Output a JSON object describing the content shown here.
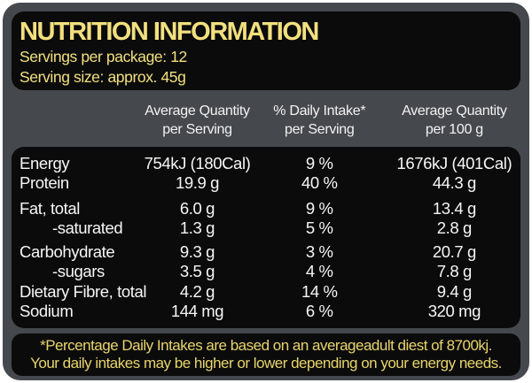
{
  "colors": {
    "page_background": "#FFFFFF",
    "frame_gray": "#45484D",
    "panel_black": "#0B0B0C",
    "header_yellow": "#F2E07E",
    "footnote_yellow": "#E8D56C",
    "table_white": "#F6F6F6"
  },
  "header": {
    "title": "NUTRITION INFORMATION",
    "servings_per_package": "Servings per package: 12",
    "serving_size": "Serving size: approx. 45g"
  },
  "table": {
    "column_headers": [
      {
        "line1": "Average Quantity",
        "line2": "per Serving"
      },
      {
        "line1": "% Daily Intake*",
        "line2": "per Serving"
      },
      {
        "line1": "Average Quantity",
        "line2": "per 100 g"
      }
    ],
    "rows": [
      {
        "nutrient": "Energy",
        "per_serving": "754kJ (180Cal)",
        "daily_intake": "9 %",
        "per_100g": "1676kJ (401Cal)"
      },
      {
        "nutrient": "Protein",
        "per_serving": "19.9 g",
        "daily_intake": "40 %",
        "per_100g": "44.3 g"
      },
      {
        "nutrient": "Fat, total",
        "per_serving": "6.0 g",
        "daily_intake": "9 %",
        "per_100g": "13.4 g"
      },
      {
        "nutrient": "-saturated",
        "per_serving": "1.3 g",
        "daily_intake": "5 %",
        "per_100g": "2.8 g"
      },
      {
        "nutrient": "Carbohydrate",
        "per_serving": "9.3 g",
        "daily_intake": "3 %",
        "per_100g": "20.7 g"
      },
      {
        "nutrient": "-sugars",
        "per_serving": "3.5 g",
        "daily_intake": "4 %",
        "per_100g": "7.8 g"
      },
      {
        "nutrient": "Dietary Fibre, total",
        "per_serving": "4.2 g",
        "daily_intake": "14 %",
        "per_100g": "9.4 g"
      },
      {
        "nutrient": "Sodium",
        "per_serving": "144 mg",
        "daily_intake": "6 %",
        "per_100g": "320 mg"
      }
    ]
  },
  "footnote": {
    "line1": "*Percentage Daily Intakes are based on an averageadult diest of 8700kj.",
    "line2": "Your daily intakes may be higher or lower depending on your energy needs."
  }
}
